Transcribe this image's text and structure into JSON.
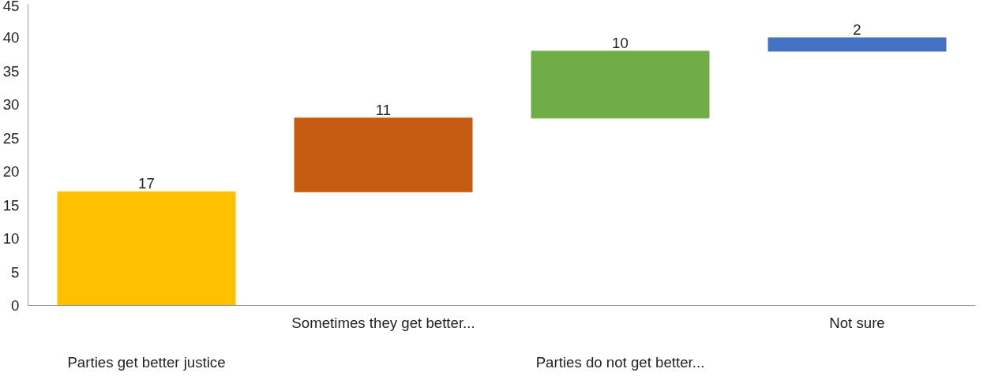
{
  "chart_data": {
    "type": "bar",
    "categories": [
      "Parties get better justice",
      "Sometimes they get better...",
      "Parties do not get better...",
      "Not sure"
    ],
    "values": [
      17,
      11,
      10,
      2
    ],
    "base": [
      0,
      17,
      28,
      38
    ],
    "colors": [
      "#ffc000",
      "#c55a11",
      "#70ad47",
      "#4472c4"
    ],
    "ylim": [
      0,
      45
    ],
    "yticks": [
      0,
      5,
      10,
      15,
      20,
      25,
      30,
      35,
      40,
      45
    ],
    "data_labels": true,
    "grid": false
  }
}
